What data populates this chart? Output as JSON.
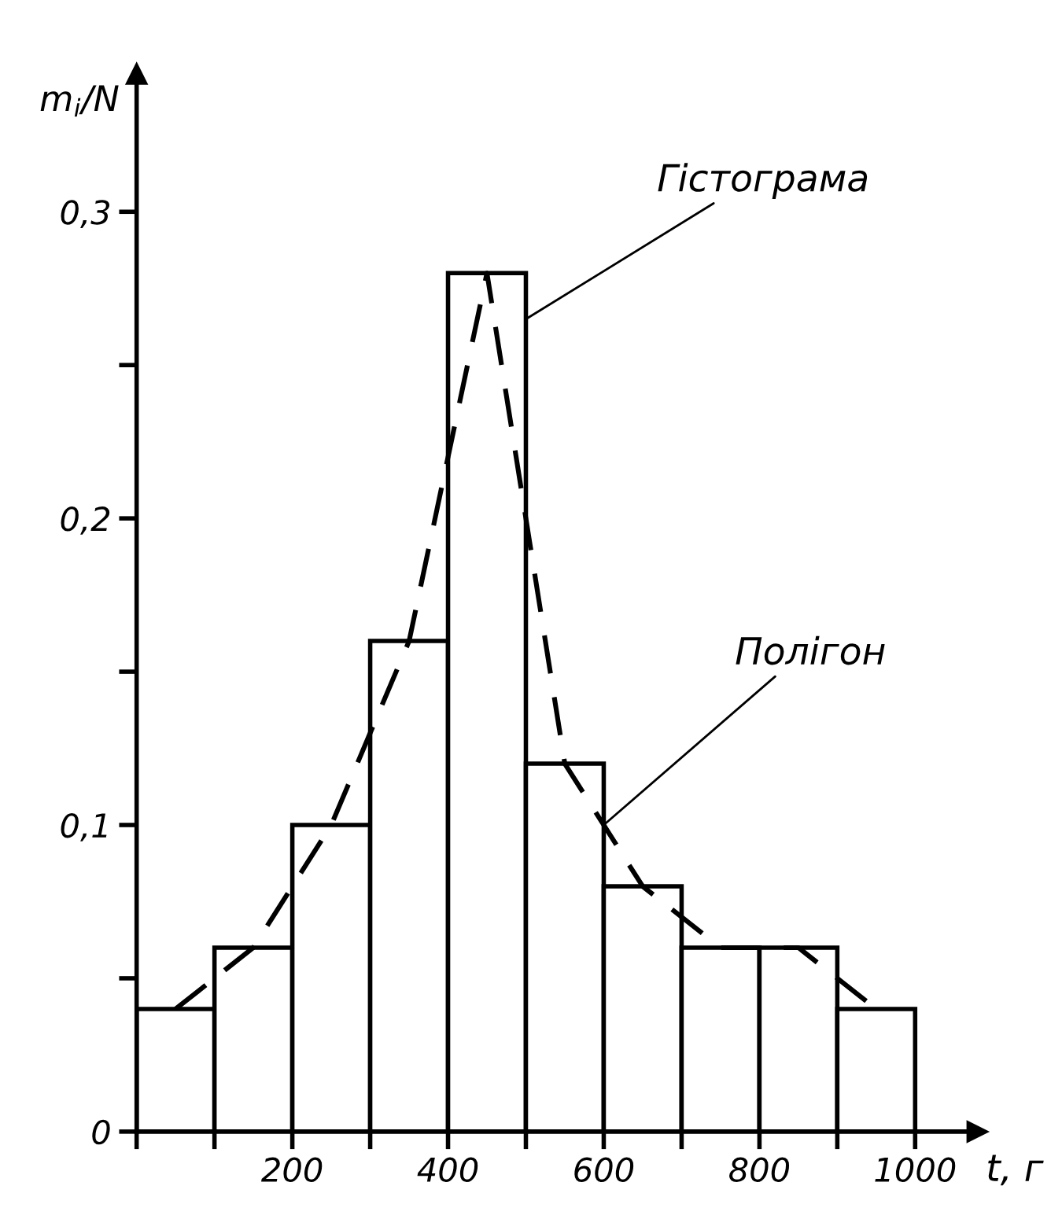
{
  "chart_data": {
    "type": "histogram",
    "bins": [
      0,
      100,
      200,
      300,
      400,
      500,
      600,
      700,
      800,
      900,
      1000
    ],
    "values": [
      0.04,
      0.06,
      0.1,
      0.16,
      0.28,
      0.12,
      0.08,
      0.06,
      0.06,
      0.04
    ],
    "color": "#ffffff",
    "series": [
      {
        "type": "line",
        "x": [
          50,
          150,
          250,
          350,
          450,
          550,
          650,
          750,
          850,
          950
        ],
        "values": [
          0.04,
          0.06,
          0.1,
          0.16,
          0.28,
          0.12,
          0.08,
          0.06,
          0.06,
          0.04
        ],
        "color": "#000000",
        "line_style": "dashed"
      }
    ],
    "xlabel": "t, г",
    "ylabel": "m$_{i}$/N",
    "xlim": [
      0,
      1080
    ],
    "ylim": [
      0,
      0.345
    ],
    "xticks": [
      {
        "value": 0,
        "label": null
      },
      {
        "value": 100,
        "label": null
      },
      200,
      {
        "value": 300,
        "label": null
      },
      400,
      {
        "value": 500,
        "label": null
      },
      600,
      {
        "value": 700,
        "label": null
      },
      800,
      {
        "value": 900,
        "label": null
      },
      1000
    ],
    "yticks": [
      {
        "value": 0,
        "label": "0"
      },
      {
        "value": 0.05,
        "label": null
      },
      {
        "value": 0.1,
        "label": "0,1"
      },
      {
        "value": 0.15,
        "label": null
      },
      {
        "value": 0.2,
        "label": "0,2"
      },
      {
        "value": 0.25,
        "label": null
      },
      {
        "value": 0.3,
        "label": "0,3"
      }
    ],
    "annotations": [
      {
        "text": "Гістограма",
        "x": 500,
        "y": 0.265
      },
      {
        "text": "Полігон",
        "x": 600,
        "y": 0.1
      }
    ],
    "grid": false,
    "legend": false
  }
}
